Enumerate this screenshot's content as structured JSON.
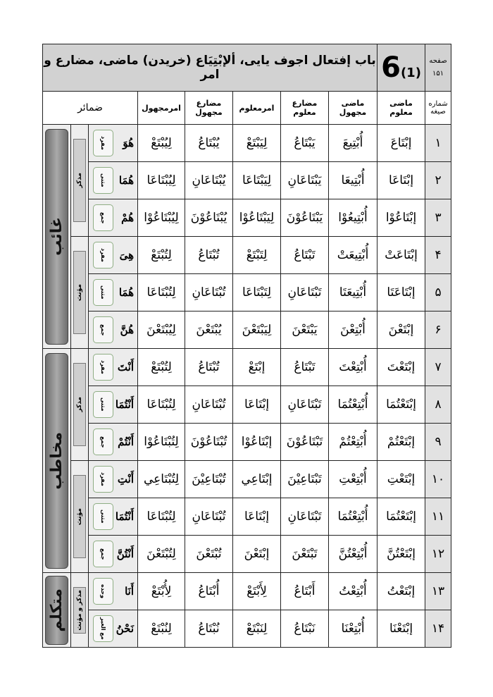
{
  "header": {
    "title": "باب إفتعال اجوف یایی، ألإبْتِیَاع (خریدن) ماضی، مضارع و امر",
    "chapter_number": "6",
    "sub_number": "(1)",
    "page_label": "صفحه",
    "page_number": "۱۵۱"
  },
  "columns": {
    "pronouns": "ضمائر",
    "amr_majhul": "امرمجهول",
    "mudari_majhul": "مضارع مجهول",
    "amr_maloom": "امرمعلوم",
    "mudari_maloom": "مضارع معلوم",
    "madi_majhul": "ماضی مجهول",
    "madi_maloom": "ماضی معلوم",
    "number": "شماره صیغه"
  },
  "groups": {
    "persons": [
      {
        "label": "غائب",
        "span": 6
      },
      {
        "label": "مخاطب",
        "span": 6
      },
      {
        "label": "متکلم",
        "span": 2
      }
    ],
    "genders": [
      {
        "label": "مذکر",
        "span": 3
      },
      {
        "label": "مؤنث",
        "span": 3
      },
      {
        "label": "مذکر",
        "span": 3
      },
      {
        "label": "مؤنث",
        "span": 3
      },
      {
        "label": "مذکر و مؤنث",
        "span": 2
      }
    ]
  },
  "rows": [
    {
      "num": "۱",
      "madi_maloom": "إبْتَاعَ",
      "madi_majhul": "أُبْتِيعَ",
      "mudari_maloom": "يَبْتَاعُ",
      "amr_maloom": "لِيَبْتَعْ",
      "mudari_majhul": "يُبْتَاعُ",
      "amr_majhul": "لِيُبْتَعْ",
      "pronoun": "هُوَ",
      "count": "مفرد"
    },
    {
      "num": "۲",
      "madi_maloom": "إبْتَاعَا",
      "madi_majhul": "أُبْتِيعَا",
      "mudari_maloom": "يَبْتَاعَانِ",
      "amr_maloom": "لِيَبْتَاعَا",
      "mudari_majhul": "يُبْتَاعَانِ",
      "amr_majhul": "لِيُبْتَاعَا",
      "pronoun": "هُمَا",
      "count": "مثنی"
    },
    {
      "num": "۳",
      "madi_maloom": "إبْتَاعُوْا",
      "madi_majhul": "أُبْتِيعُوْا",
      "mudari_maloom": "يَبْتَاعُوْنَ",
      "amr_maloom": "لِيَبْتَاعُوْا",
      "mudari_majhul": "يُبْتَاعُوْنَ",
      "amr_majhul": "لِيُبْتَاعُوْا",
      "pronoun": "هُمْ",
      "count": "جمع"
    },
    {
      "num": "۴",
      "madi_maloom": "إبْتَاعَتْ",
      "madi_majhul": "أُبْتِيعَتْ",
      "mudari_maloom": "تَبْتَاعُ",
      "amr_maloom": "لِتَبْتَعْ",
      "mudari_majhul": "تُبْتَاعُ",
      "amr_majhul": "لِتُبْتَعْ",
      "pronoun": "هِیَ",
      "count": "مفرد"
    },
    {
      "num": "۵",
      "madi_maloom": "إبْتَاعَتَا",
      "madi_majhul": "أُبْتِيعَتَا",
      "mudari_maloom": "تَبْتَاعَانِ",
      "amr_maloom": "لِتَبْتَاعَا",
      "mudari_majhul": "تُبْتَاعَانِ",
      "amr_majhul": "لِتُبْتَاعَا",
      "pronoun": "هُمَا",
      "count": "مثنی"
    },
    {
      "num": "۶",
      "madi_maloom": "إبْتَعْنَ",
      "madi_majhul": "أُبْتِعْنَ",
      "mudari_maloom": "يَبْتَعْنَ",
      "amr_maloom": "لِيَبْتَعْنَ",
      "mudari_majhul": "يُبْتَعْنَ",
      "amr_majhul": "لِيُبْتَعْنَ",
      "pronoun": "هُنَّ",
      "count": "جمع"
    },
    {
      "num": "۷",
      "madi_maloom": "إبْتَعْتَ",
      "madi_majhul": "أُبْتِعْتَ",
      "mudari_maloom": "تَبْتَاعُ",
      "amr_maloom": "إبْتَعْ",
      "mudari_majhul": "تُبْتَاعُ",
      "amr_majhul": "لِتُبْتَعْ",
      "pronoun": "أَنْتَ",
      "count": "مفرد"
    },
    {
      "num": "۸",
      "madi_maloom": "إبْتَعْتُمَا",
      "madi_majhul": "أُبْتِعْتُمَا",
      "mudari_maloom": "تَبْتَاعَانِ",
      "amr_maloom": "إبْتَاعَا",
      "mudari_majhul": "تُبْتَاعَانِ",
      "amr_majhul": "لِتُبْتَاعَا",
      "pronoun": "أَنْتُمَا",
      "count": "مثنی"
    },
    {
      "num": "۹",
      "madi_maloom": "إبْتَعْتُمْ",
      "madi_majhul": "أُبْتِعْتُمْ",
      "mudari_maloom": "تَبْتَاعُوْنَ",
      "amr_maloom": "إبْتَاعُوْا",
      "mudari_majhul": "تُبْتَاعُوْنَ",
      "amr_majhul": "لِتُبْتَاعُوْا",
      "pronoun": "أَنْتُمْ",
      "count": "جمع"
    },
    {
      "num": "۱۰",
      "madi_maloom": "إبْتَعْتِ",
      "madi_majhul": "أُبْتِعْتِ",
      "mudari_maloom": "تَبْتَاعِيْنَ",
      "amr_maloom": "إبْتَاعِي",
      "mudari_majhul": "تُبْتَاعِيْنَ",
      "amr_majhul": "لِتُبْتَاعِي",
      "pronoun": "أَنْتِ",
      "count": "مفرد"
    },
    {
      "num": "۱۱",
      "madi_maloom": "إبْتَعْتُمَا",
      "madi_majhul": "أُبْتِعْتُمَا",
      "mudari_maloom": "تَبْتَاعَانِ",
      "amr_maloom": "إبْتَاعَا",
      "mudari_majhul": "تُبْتَاعَانِ",
      "amr_majhul": "لِتُبْتَاعَا",
      "pronoun": "أَنْتُمَا",
      "count": "مثنی"
    },
    {
      "num": "۱۲",
      "madi_maloom": "إبْتَعْتُنَّ",
      "madi_majhul": "أُبْتِعْتُنَّ",
      "mudari_maloom": "تَبْتَعْنَ",
      "amr_maloom": "إبْتَعْنَ",
      "mudari_majhul": "تُبْتَعْنَ",
      "amr_majhul": "لِتُبْتَعْنَ",
      "pronoun": "أَنْتُنَّ",
      "count": "جمع"
    },
    {
      "num": "۱۳",
      "madi_maloom": "إبْتَعْتُ",
      "madi_majhul": "أُبْتِعْتُ",
      "mudari_maloom": "أَبْتَاعُ",
      "amr_maloom": "لِأَبْتَعْ",
      "mudari_majhul": "أُبْتَاعُ",
      "amr_majhul": "لِأُبْتَعْ",
      "pronoun": "أَنَا",
      "count": "وحده"
    },
    {
      "num": "۱۴",
      "madi_maloom": "إبْتَعْنَا",
      "madi_majhul": "أُبْتِعْنَا",
      "mudari_maloom": "نَبْتَاعُ",
      "amr_maloom": "لِنَبْتَعْ",
      "mudari_majhul": "نُبْتَاعُ",
      "amr_majhul": "لِنُبْتَعْ",
      "pronoun": "نَحْنُ",
      "count": "مع الغیر"
    }
  ]
}
